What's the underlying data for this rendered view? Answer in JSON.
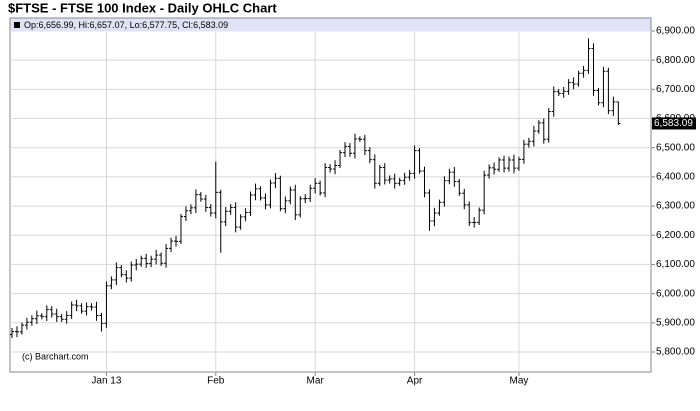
{
  "chart_data": {
    "type": "ohlc",
    "title": "$FTSE - FTSE 100 Index - Daily OHLC Chart",
    "legend_text": "Op:6,656.99, Hi:6,657.07, Lo:6,577.75, Cl:6,583.09",
    "annotation": "(c) Barchart.com",
    "last_label": "6,583.09",
    "color": "#000000",
    "grid": true,
    "ylim": [
      5740,
      6930
    ],
    "yticks": [
      {
        "value": 5800,
        "label": "5,800.00"
      },
      {
        "value": 5900,
        "label": "5,900.00"
      },
      {
        "value": 6000,
        "label": "6,000.00"
      },
      {
        "value": 6100,
        "label": "6,100.00"
      },
      {
        "value": 6200,
        "label": "6,200.00"
      },
      {
        "value": 6300,
        "label": "6,300.00"
      },
      {
        "value": 6400,
        "label": "6,400.00"
      },
      {
        "value": 6500,
        "label": "6,500.00"
      },
      {
        "value": 6600,
        "label": "6,600.00"
      },
      {
        "value": 6700,
        "label": "6,700.00"
      },
      {
        "value": 6800,
        "label": "6,800.00"
      },
      {
        "value": 6900,
        "label": "6,900.00"
      }
    ],
    "categories": [
      null,
      null,
      null,
      null,
      null,
      null,
      null,
      null,
      null,
      null,
      null,
      null,
      null,
      null,
      null,
      null,
      null,
      null,
      null,
      "Jan 13",
      null,
      null,
      null,
      null,
      null,
      null,
      null,
      null,
      null,
      null,
      null,
      null,
      null,
      null,
      null,
      null,
      null,
      null,
      null,
      null,
      null,
      "Feb",
      null,
      null,
      null,
      null,
      null,
      null,
      null,
      null,
      null,
      null,
      null,
      null,
      null,
      null,
      null,
      null,
      null,
      null,
      null,
      "Mar",
      null,
      null,
      null,
      null,
      null,
      null,
      null,
      null,
      null,
      null,
      null,
      null,
      null,
      null,
      null,
      null,
      null,
      null,
      null,
      "Apr",
      null,
      null,
      null,
      null,
      null,
      null,
      null,
      null,
      null,
      null,
      null,
      null,
      null,
      null,
      null,
      null,
      null,
      null,
      null,
      null,
      "May",
      null,
      null,
      null,
      null,
      null,
      null,
      null,
      null,
      null,
      null,
      null,
      null,
      null,
      null,
      null,
      null,
      null,
      null,
      null,
      null
    ],
    "open": [
      5860,
      5870,
      5869,
      5892,
      5902,
      5914,
      5924,
      5921,
      5945,
      5930,
      5921,
      5912,
      5925,
      5961,
      5958,
      5940,
      5955,
      5954,
      5925,
      5898,
      6027,
      6047,
      6089,
      6065,
      6053,
      6098,
      6101,
      6121,
      6103,
      6118,
      6132,
      6104,
      6155,
      6180,
      6179,
      6264,
      6284,
      6294,
      6339,
      6324,
      6295,
      6276,
      6347,
      6246,
      6282,
      6295,
      6228,
      6263,
      6278,
      6338,
      6359,
      6328,
      6304,
      6379,
      6395,
      6291,
      6318,
      6355,
      6270,
      6325,
      6326,
      6361,
      6378,
      6345,
      6432,
      6427,
      6439,
      6483,
      6504,
      6481,
      6530,
      6529,
      6490,
      6459,
      6378,
      6432,
      6389,
      6393,
      6378,
      6388,
      6399,
      6412,
      6490,
      6420,
      6345,
      6249,
      6276,
      6313,
      6387,
      6416,
      6384,
      6344,
      6304,
      6244,
      6244,
      6286,
      6406,
      6431,
      6426,
      6458,
      6430,
      6458,
      6430,
      6460,
      6512,
      6522,
      6557,
      6585,
      6529,
      6624,
      6692,
      6686,
      6693,
      6723,
      6718,
      6755,
      6765,
      6840,
      6696,
      6654,
      6762,
      6627,
      6656.99
    ],
    "high": [
      5882,
      5888,
      5901,
      5917,
      5926,
      5942,
      5933,
      5960,
      5957,
      5948,
      5930,
      5940,
      5973,
      5979,
      5967,
      5970,
      5967,
      5972,
      5934,
      6042,
      6059,
      6107,
      6098,
      6080,
      6110,
      6119,
      6130,
      6136,
      6130,
      6150,
      6141,
      6170,
      6192,
      6198,
      6273,
      6299,
      6306,
      6357,
      6348,
      6339,
      6307,
      6452,
      6356,
      6297,
      6307,
      6313,
      6272,
      6293,
      6350,
      6377,
      6368,
      6343,
      6391,
      6413,
      6404,
      6333,
      6367,
      6373,
      6334,
      6341,
      6373,
      6396,
      6387,
      6447,
      6444,
      6457,
      6492,
      6519,
      6516,
      6548,
      6539,
      6544,
      6502,
      6477,
      6441,
      6447,
      6405,
      6411,
      6397,
      6414,
      6424,
      6508,
      6499,
      6435,
      6357,
      6294,
      6322,
      6402,
      6428,
      6434,
      6393,
      6359,
      6316,
      6262,
      6295,
      6421,
      6443,
      6449,
      6467,
      6473,
      6470,
      6476,
      6469,
      6527,
      6534,
      6575,
      6594,
      6600,
      6636,
      6710,
      6701,
      6708,
      6735,
      6741,
      6764,
      6780,
      6875,
      6858,
      6705,
      6777,
      6774,
      6675,
      6657.07
    ],
    "low": [
      5848,
      5851,
      5860,
      5877,
      5890,
      5896,
      5912,
      5906,
      5918,
      5903,
      5903,
      5897,
      5913,
      5940,
      5931,
      5925,
      5942,
      5907,
      5870,
      5883,
      6015,
      6029,
      6056,
      6038,
      6041,
      6080,
      6092,
      6088,
      6091,
      6100,
      6095,
      6089,
      6143,
      6161,
      6170,
      6249,
      6272,
      6276,
      6315,
      6280,
      6264,
      6258,
      6140,
      6231,
      6270,
      6210,
      6219,
      6248,
      6266,
      6320,
      6319,
      6289,
      6292,
      6361,
      6282,
      6276,
      6306,
      6252,
      6261,
      6310,
      6314,
      6343,
      6336,
      6330,
      6415,
      6409,
      6430,
      6468,
      6469,
      6463,
      6520,
      6475,
      6447,
      6360,
      6369,
      6374,
      6377,
      6360,
      6369,
      6373,
      6387,
      6394,
      6411,
      6330,
      6215,
      6231,
      6267,
      6298,
      6375,
      6366,
      6335,
      6289,
      6232,
      6226,
      6235,
      6271,
      6394,
      6408,
      6417,
      6415,
      6418,
      6412,
      6421,
      6445,
      6500,
      6504,
      6548,
      6514,
      6517,
      6606,
      6677,
      6671,
      6681,
      6700,
      6709,
      6740,
      6753,
      6678,
      6645,
      6639,
      6615,
      6609,
      6577.75
    ],
    "close": [
      5870,
      5869,
      5892,
      5902,
      5914,
      5924,
      5921,
      5945,
      5930,
      5921,
      5912,
      5925,
      5961,
      5958,
      5940,
      5955,
      5954,
      5925,
      5898,
      6027,
      6047,
      6089,
      6065,
      6053,
      6098,
      6101,
      6121,
      6103,
      6118,
      6132,
      6104,
      6155,
      6180,
      6179,
      6264,
      6284,
      6294,
      6339,
      6324,
      6295,
      6276,
      6347,
      6246,
      6282,
      6295,
      6228,
      6263,
      6278,
      6338,
      6359,
      6328,
      6304,
      6379,
      6395,
      6291,
      6318,
      6355,
      6270,
      6325,
      6326,
      6361,
      6378,
      6345,
      6432,
      6427,
      6439,
      6483,
      6504,
      6481,
      6530,
      6529,
      6490,
      6459,
      6378,
      6432,
      6389,
      6393,
      6378,
      6388,
      6399,
      6412,
      6490,
      6420,
      6345,
      6249,
      6276,
      6313,
      6387,
      6416,
      6384,
      6344,
      6304,
      6244,
      6244,
      6286,
      6406,
      6431,
      6426,
      6458,
      6430,
      6458,
      6430,
      6460,
      6512,
      6522,
      6557,
      6585,
      6529,
      6624,
      6692,
      6686,
      6693,
      6723,
      6718,
      6755,
      6765,
      6840,
      6696,
      6654,
      6762,
      6627,
      6657,
      6583.09
    ]
  }
}
